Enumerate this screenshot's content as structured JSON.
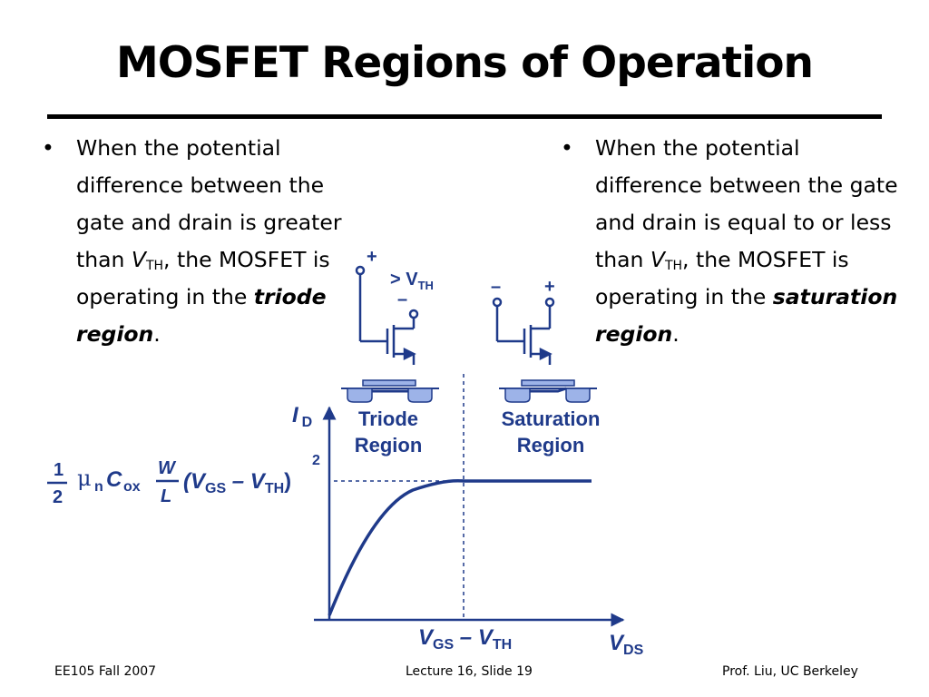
{
  "slide": {
    "title": "MOSFET Regions of Operation"
  },
  "bullets": [
    {
      "marker": "•",
      "lead": "When the potential difference between the gate and drain is greater than ",
      "var": "V",
      "var_sub": "TH",
      "mid": ", the MOSFET is operating in the ",
      "term": "triode region",
      "end": "."
    },
    {
      "marker": "•",
      "lead": "When the potential difference between the gate and drain is equal to or less than ",
      "var": "V",
      "var_sub": "TH",
      "mid": ", the MOSFET is operating in the ",
      "term": "saturation region",
      "end": "."
    }
  ],
  "figure": {
    "triode_circuit": {
      "plus": "+",
      "minus": "–",
      "condition": "> V",
      "condition_sub": "TH"
    },
    "saturation_circuit": {
      "minus": "–",
      "plus": "+"
    },
    "triode_label": [
      "Triode",
      "Region"
    ],
    "saturation_label": [
      "Saturation",
      "Region"
    ],
    "y_axis_label": "I",
    "y_axis_sub": "D",
    "x_axis_label": "V",
    "x_axis_sub": "DS",
    "x_marker_label": "V",
    "x_marker_sub1": "GS",
    "x_marker_op": " – V",
    "x_marker_sub2": "TH",
    "equation": {
      "frac_num": "1",
      "frac_den": "2",
      "mu": "μ",
      "mu_sub": "n",
      "c": "C",
      "c_sub": "ox",
      "w": "W",
      "l": "L",
      "paren_open": "(V",
      "gs": "GS",
      "minus_v": " – V",
      "th": "TH",
      "paren_close": ")",
      "exponent": "2"
    },
    "color": "#1f3a8a"
  },
  "footer": {
    "left": "EE105 Fall 2007",
    "center": "Lecture 16, Slide 19",
    "right": "Prof. Liu, UC Berkeley"
  }
}
